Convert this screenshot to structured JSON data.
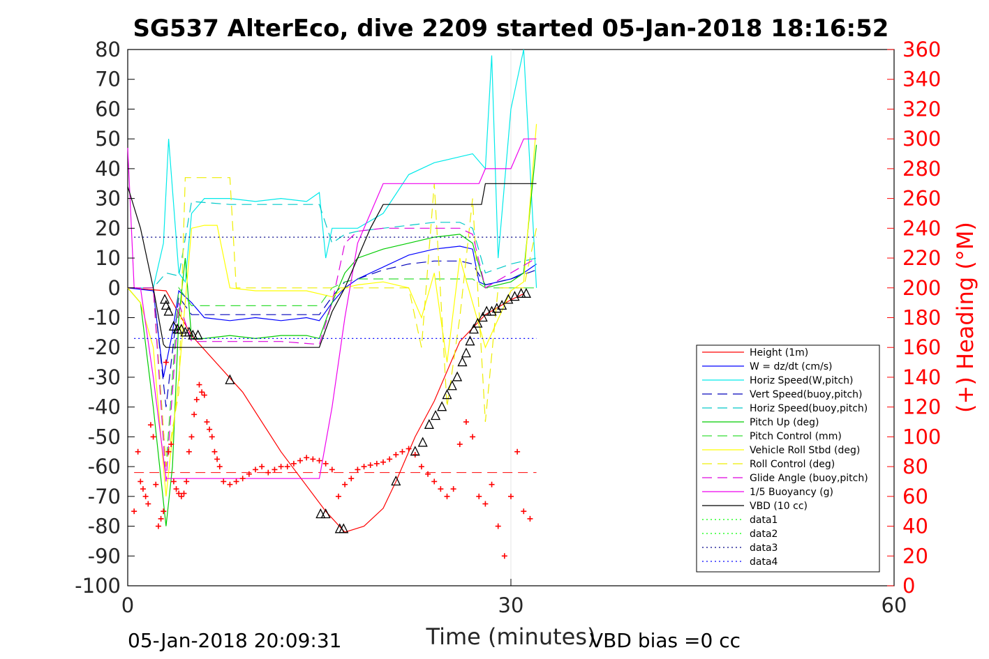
{
  "chart_data": {
    "type": "line",
    "title": "SG537 AlterEco, dive 2209 started 05-Jan-2018 18:16:52",
    "xlabel": "Time (minutes)",
    "ylabel_right": "(+) Heading (°M)",
    "footer_left": "05-Jan-2018 20:09:31",
    "footer_right": "VBD bias =0 cc",
    "xlim": [
      0,
      60
    ],
    "ylim": [
      -100,
      80
    ],
    "ylim_right": [
      0,
      360
    ],
    "xticks": [
      "0",
      "30",
      "60"
    ],
    "yticks": [
      "80",
      "70",
      "60",
      "50",
      "40",
      "30",
      "20",
      "10",
      "0",
      "-10",
      "-20",
      "-30",
      "-40",
      "-50",
      "-60",
      "-70",
      "-80",
      "-90",
      "-100"
    ],
    "yticks_right": [
      "360",
      "340",
      "320",
      "300",
      "280",
      "260",
      "240",
      "220",
      "200",
      "180",
      "160",
      "140",
      "120",
      "100",
      "80",
      "60",
      "40",
      "20",
      "0"
    ],
    "right_axis_color": "#ff0000",
    "legend_position": "lower-right inside",
    "series": [
      {
        "name": "Height (1m)",
        "color": "#ff0000",
        "style": "solid",
        "x": [
          0,
          3,
          5,
          9,
          12,
          15.5,
          17,
          18.5,
          20,
          21,
          22.5,
          24,
          26,
          28,
          30,
          31
        ],
        "y": [
          0,
          -1,
          -16,
          -35,
          -55,
          -75,
          -82,
          -80,
          -74,
          -65,
          -50,
          -38,
          -18,
          -9,
          -4,
          -2
        ]
      },
      {
        "name": "W = dz/dt (cm/s)",
        "color": "#0000ff",
        "style": "solid",
        "x": [
          0,
          2,
          2.8,
          3.5,
          4,
          5,
          6,
          8,
          10,
          12,
          14,
          15,
          16,
          17,
          18,
          20,
          22,
          24,
          26,
          27,
          27.5,
          28,
          30,
          31,
          32
        ],
        "y": [
          0,
          -1,
          -30,
          -15,
          -1,
          -5,
          -10,
          -11,
          -10,
          -11,
          -10,
          -11,
          -5,
          0,
          3,
          7,
          11,
          13,
          14,
          13,
          2,
          1,
          3,
          5,
          8
        ]
      },
      {
        "name": "Horiz Speed(W,pitch)",
        "color": "#00eaea",
        "style": "solid",
        "x": [
          0,
          2,
          2.8,
          3.2,
          4,
          4.5,
          5,
          6,
          8,
          10,
          12,
          14,
          15,
          15.5,
          16,
          17,
          18,
          20,
          22,
          24,
          26,
          27,
          28,
          28.5,
          29,
          30,
          31,
          32
        ],
        "y": [
          0,
          0,
          15,
          50,
          5,
          2,
          25,
          30,
          30,
          29,
          30,
          29,
          32,
          10,
          20,
          20,
          20,
          25,
          38,
          42,
          44,
          45,
          40,
          78,
          10,
          60,
          80,
          0
        ]
      },
      {
        "name": "Vert Speed(buoy,pitch)",
        "color": "#0000bb",
        "style": "dash",
        "x": [
          0,
          2,
          3,
          4,
          5,
          8,
          12,
          15,
          16,
          17,
          18,
          20,
          22,
          24,
          26,
          27,
          28,
          30,
          32
        ],
        "y": [
          0,
          0,
          -40,
          -3,
          -9,
          -9,
          -9,
          -9,
          -3,
          2,
          3,
          6,
          8,
          9,
          9,
          8,
          1,
          3,
          6
        ]
      },
      {
        "name": "Horiz Speed(buoy,pitch)",
        "color": "#00c8c8",
        "style": "dash",
        "x": [
          0,
          2,
          3,
          4,
          5,
          8,
          12,
          15,
          16,
          17,
          18,
          20,
          22,
          24,
          26,
          27,
          28,
          30,
          32
        ],
        "y": [
          0,
          0,
          5,
          4,
          29,
          28,
          28,
          28,
          15,
          18,
          19,
          20,
          21,
          22,
          22,
          20,
          5,
          8,
          10
        ]
      },
      {
        "name": "Pitch Up (deg)",
        "color": "#00cc00",
        "style": "solid",
        "x": [
          0,
          1,
          2,
          3,
          3.5,
          4,
          4.5,
          5,
          6,
          8,
          10,
          12,
          14,
          15,
          16,
          17,
          18,
          20,
          22,
          24,
          26,
          27,
          28,
          30,
          31,
          32
        ],
        "y": [
          0,
          -5,
          -40,
          -80,
          -60,
          -10,
          10,
          -17,
          -17,
          -16,
          -17,
          -16,
          -16,
          -17,
          -5,
          5,
          10,
          13,
          15,
          17,
          18,
          15,
          0,
          2,
          5,
          48
        ]
      },
      {
        "name": "Pitch Control (mm)",
        "color": "#33dd33",
        "style": "dash",
        "x": [
          0,
          2,
          3,
          4,
          5,
          8,
          12,
          15,
          16,
          17,
          18,
          20,
          22,
          24,
          26,
          27,
          28,
          30,
          32
        ],
        "y": [
          0,
          0,
          -60,
          0,
          -6,
          -6,
          -6,
          -6,
          0,
          2,
          3,
          3,
          3,
          3,
          3,
          3,
          0,
          0,
          0
        ]
      },
      {
        "name": "Vehicle Roll Stbd (deg)",
        "color": "#ffff00",
        "style": "solid",
        "x": [
          0,
          1,
          2,
          3,
          4,
          5,
          6,
          7,
          8,
          10,
          12,
          14,
          15,
          16,
          17,
          18,
          20,
          22,
          23,
          24,
          25,
          26,
          27,
          28,
          30,
          31,
          32
        ],
        "y": [
          0,
          -5,
          -20,
          -70,
          -30,
          20,
          21,
          21,
          0,
          -1,
          -1,
          -1,
          -2,
          -3,
          0,
          1,
          2,
          0,
          -10,
          5,
          -25,
          10,
          -5,
          -20,
          -1,
          2,
          55
        ]
      },
      {
        "name": "Roll Control (deg)",
        "color": "#eeee00",
        "style": "dash",
        "x": [
          0,
          2,
          3,
          4,
          4.5,
          5,
          8,
          8.5,
          12,
          15,
          16,
          18,
          20,
          22,
          23,
          24,
          25,
          26,
          27,
          28,
          29,
          30,
          31,
          32
        ],
        "y": [
          0,
          0,
          -60,
          -35,
          37,
          37,
          37,
          0,
          0,
          0,
          0,
          0,
          0,
          0,
          -20,
          35,
          -40,
          -10,
          30,
          -45,
          0,
          0,
          0,
          20
        ]
      },
      {
        "name": "Glide Angle (buoy,pitch)",
        "color": "#dd00dd",
        "style": "dash",
        "x": [
          0,
          2,
          3,
          4,
          5,
          8,
          12,
          15,
          16,
          17,
          18,
          20,
          22,
          24,
          26,
          27,
          28,
          30,
          32
        ],
        "y": [
          0,
          0,
          -65,
          -5,
          -18,
          -18,
          -18,
          -19,
          -5,
          15,
          19,
          20,
          20,
          20,
          20,
          18,
          0,
          5,
          10
        ]
      },
      {
        "name": "1/5 Buoyancy (g)",
        "color": "#ee00ee",
        "style": "solid",
        "x": [
          0,
          0.5,
          1,
          2,
          3,
          4,
          5,
          10,
          15,
          16,
          17,
          18,
          19,
          20,
          21,
          22,
          24,
          26,
          27.5,
          28,
          30,
          31,
          32
        ],
        "y": [
          47,
          0,
          0,
          -30,
          -64,
          -64,
          -64,
          -64,
          -64,
          -40,
          -10,
          15,
          25,
          35,
          35,
          35,
          35,
          35,
          35,
          40,
          40,
          50,
          50
        ]
      },
      {
        "name": "VBD (10 cc)",
        "color": "#000000",
        "style": "solid",
        "x": [
          0,
          1,
          2,
          2.8,
          3,
          4,
          6,
          10,
          15,
          16,
          17,
          18,
          19,
          20,
          22,
          24,
          26,
          27,
          27.7,
          28,
          30,
          31,
          32
        ],
        "y": [
          34,
          20,
          0,
          -19,
          -20,
          -20,
          -20,
          -20,
          -20,
          -8,
          0,
          10,
          20,
          28,
          28,
          28,
          28,
          28,
          28,
          35,
          35,
          35,
          35
        ]
      },
      {
        "name": "data1",
        "color": "#00ff00",
        "style": "dot",
        "x": [
          0,
          0
        ],
        "y": [
          0,
          0
        ]
      },
      {
        "name": "data2",
        "color": "#00ff00",
        "style": "dot",
        "x": [
          0,
          0
        ],
        "y": [
          0,
          0
        ]
      },
      {
        "name": "data3",
        "color": "#000088",
        "style": "dot",
        "x": [
          0.5,
          32
        ],
        "y": [
          17,
          17
        ]
      },
      {
        "name": "data4",
        "color": "#0000ff",
        "style": "dot",
        "x": [
          0.5,
          32
        ],
        "y": [
          -17,
          -17
        ]
      }
    ],
    "reference_lines": [
      {
        "color": "#ff0000",
        "style": "dash",
        "y": -62,
        "x": [
          0.5,
          32
        ]
      }
    ],
    "heading_markers": {
      "color": "#ff0000",
      "marker": "+",
      "axis": "right",
      "x": [
        0.5,
        0.8,
        1.0,
        1.2,
        1.4,
        1.6,
        1.8,
        2.0,
        2.2,
        2.4,
        2.6,
        2.8,
        3.0,
        3.2,
        3.4,
        3.6,
        3.8,
        4.0,
        4.2,
        4.4,
        4.6,
        4.8,
        5.0,
        5.2,
        5.4,
        5.6,
        5.8,
        6.0,
        6.2,
        6.4,
        6.6,
        6.8,
        7.0,
        7.2,
        7.5,
        8.0,
        8.5,
        9.0,
        9.5,
        10.0,
        10.5,
        11.0,
        11.5,
        12.0,
        12.5,
        13.0,
        13.5,
        14.0,
        14.5,
        15.0,
        15.5,
        16.0,
        16.5,
        17.0,
        17.5,
        18.0,
        18.5,
        19.0,
        19.5,
        20.0,
        20.5,
        21.0,
        21.5,
        22.0,
        22.5,
        23.0,
        23.5,
        24.0,
        24.5,
        25.0,
        25.5,
        26.0,
        26.5,
        27.0,
        27.5,
        28.0,
        28.5,
        29.0,
        29.5,
        30.0,
        30.5,
        31.0,
        31.5
      ],
      "y": [
        50,
        90,
        70,
        65,
        60,
        55,
        108,
        100,
        68,
        40,
        45,
        50,
        150,
        90,
        95,
        70,
        65,
        62,
        60,
        62,
        70,
        90,
        100,
        115,
        125,
        135,
        130,
        128,
        110,
        105,
        100,
        90,
        85,
        80,
        70,
        68,
        70,
        72,
        75,
        78,
        80,
        76,
        78,
        80,
        80,
        82,
        84,
        86,
        85,
        84,
        82,
        78,
        60,
        68,
        72,
        78,
        80,
        81,
        82,
        83,
        85,
        88,
        90,
        92,
        88,
        80,
        75,
        70,
        65,
        60,
        65,
        95,
        110,
        100,
        60,
        55,
        68,
        40,
        20,
        60,
        90,
        50,
        45
      ]
    },
    "vbd_triangles": {
      "color": "#000000",
      "marker": "triangle",
      "x": [
        2.9,
        3.0,
        3.2,
        3.6,
        3.9,
        4.2,
        4.5,
        4.8,
        5.1,
        5.5,
        8.0,
        15.1,
        15.5,
        16.6,
        16.9,
        21.0,
        22.5,
        23.1,
        23.6,
        24.1,
        24.6,
        25.0,
        25.4,
        25.8,
        26.2,
        26.5,
        26.8,
        27.1,
        27.4,
        27.8,
        28.1,
        28.5,
        28.9,
        29.3,
        29.8,
        30.3,
        30.8,
        31.2
      ],
      "y": [
        -4,
        -6,
        -8,
        -13,
        -14,
        -14,
        -15,
        -15,
        -16,
        -16,
        -31,
        -76,
        -76,
        -81,
        -81,
        -65,
        -55,
        -52,
        -46,
        -43,
        -40,
        -36,
        -33,
        -30,
        -25,
        -22,
        -18,
        -14,
        -12,
        -10,
        -8,
        -8,
        -7,
        -6,
        -4,
        -3,
        -2,
        -2
      ]
    }
  }
}
